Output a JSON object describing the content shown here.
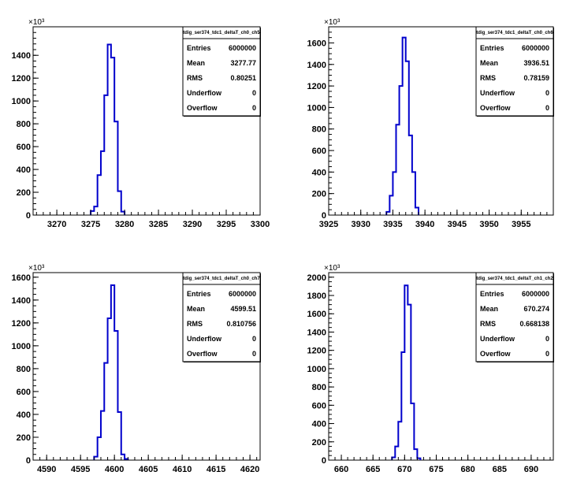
{
  "colors": {
    "histogram": "#0000cc",
    "frame": "#000000",
    "background": "#ffffff"
  },
  "stat_labels": [
    "Entries",
    "Mean",
    "RMS",
    "Underflow",
    "Overflow"
  ],
  "chart_data": [
    {
      "type": "histogram",
      "title": "tdig_ser374_tdc1_deltaT_ch0_ch5",
      "y_multiplier": "×10³",
      "xlim": [
        3266.5,
        3300
      ],
      "ylim": [
        0,
        1650
      ],
      "xticks": [
        3270,
        3275,
        3280,
        3285,
        3290,
        3295,
        3300
      ],
      "yticks": [
        0,
        200,
        400,
        600,
        800,
        1000,
        1200,
        1400
      ],
      "bins": {
        "edges": [
          3275,
          3275.5,
          3276,
          3276.5,
          3277,
          3277.5,
          3278,
          3278.5,
          3279,
          3279.5,
          3280
        ],
        "counts": [
          35,
          75,
          350,
          560,
          1050,
          1495,
          1380,
          820,
          210,
          30
        ]
      },
      "stats": {
        "Entries": "6000000",
        "Mean": "3277.77",
        "RMS": "0.80251",
        "Underflow": "0",
        "Overflow": "0"
      }
    },
    {
      "type": "histogram",
      "title": "tdig_ser374_tdc1_deltaT_ch0_ch6",
      "y_multiplier": "×10³",
      "xlim": [
        3925,
        3960
      ],
      "ylim": [
        0,
        1750
      ],
      "xticks": [
        3925,
        3930,
        3935,
        3940,
        3945,
        3950,
        3955
      ],
      "yticks": [
        0,
        200,
        400,
        600,
        800,
        1000,
        1200,
        1400,
        1600
      ],
      "bins": {
        "edges": [
          3934,
          3934.5,
          3935,
          3935.5,
          3936,
          3936.5,
          3937,
          3937.5,
          3938,
          3938.5,
          3939
        ],
        "counts": [
          30,
          180,
          400,
          840,
          1200,
          1650,
          1430,
          740,
          400,
          70
        ]
      },
      "stats": {
        "Entries": "6000000",
        "Mean": "3936.51",
        "RMS": "0.78159",
        "Underflow": "0",
        "Overflow": "0"
      }
    },
    {
      "type": "histogram",
      "title": "tdig_ser374_tdc1_deltaT_ch0_ch7",
      "y_multiplier": "×10³",
      "xlim": [
        4588,
        4621.5
      ],
      "ylim": [
        0,
        1640
      ],
      "xticks": [
        4590,
        4595,
        4600,
        4605,
        4610,
        4615,
        4620
      ],
      "yticks": [
        0,
        200,
        400,
        600,
        800,
        1000,
        1200,
        1400,
        1600
      ],
      "bins": {
        "edges": [
          4597,
          4597.5,
          4598,
          4598.5,
          4599,
          4599.5,
          4600,
          4600.5,
          4601,
          4601.5,
          4602
        ],
        "counts": [
          30,
          200,
          430,
          850,
          1240,
          1530,
          1130,
          420,
          50,
          10
        ]
      },
      "stats": {
        "Entries": "6000000",
        "Mean": "4599.51",
        "RMS": "0.810756",
        "Underflow": "0",
        "Overflow": "0"
      }
    },
    {
      "type": "histogram",
      "title": "tdig_ser374_tdc1_deltaT_ch1_ch2",
      "y_multiplier": "×10³",
      "xlim": [
        658,
        693.5
      ],
      "ylim": [
        0,
        2050
      ],
      "xticks": [
        660,
        665,
        670,
        675,
        680,
        685,
        690
      ],
      "yticks": [
        0,
        200,
        400,
        600,
        800,
        1000,
        1200,
        1400,
        1600,
        1800,
        2000
      ],
      "bins": {
        "edges": [
          668,
          668.5,
          669,
          669.5,
          670,
          670.5,
          671,
          671.5,
          672,
          672.5
        ],
        "counts": [
          30,
          150,
          420,
          1180,
          1910,
          1700,
          620,
          120,
          20
        ]
      },
      "stats": {
        "Entries": "6000000",
        "Mean": "670.274",
        "RMS": "0.668138",
        "Underflow": "0",
        "Overflow": "0"
      }
    }
  ]
}
